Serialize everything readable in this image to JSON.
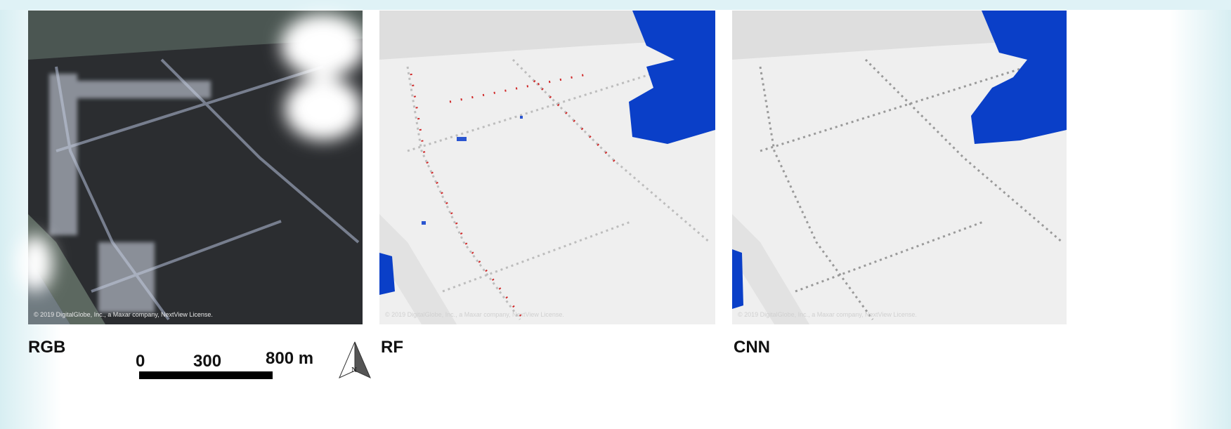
{
  "panels": [
    {
      "label": "RGB",
      "credit": "© 2019 DigitalGlobe, Inc., a Maxar company, NextView License."
    },
    {
      "label": "RF",
      "credit": "© 2019 DigitalGlobe, Inc., a Maxar company, NextView License."
    },
    {
      "label": "CNN",
      "credit": "© 2019 DigitalGlobe, Inc., a Maxar company, NextView License."
    }
  ],
  "scale_bar": {
    "labels": [
      "0",
      "300",
      "800 m"
    ]
  },
  "north_arrow": {
    "label": "N"
  }
}
